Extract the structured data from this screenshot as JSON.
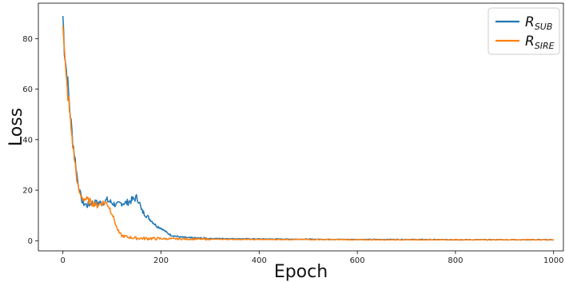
{
  "chart_data": {
    "type": "line",
    "xlabel": "Epoch",
    "ylabel": "Loss",
    "xlim": [
      -50,
      1020
    ],
    "ylim": [
      -4,
      94
    ],
    "x_ticks": [
      0,
      200,
      400,
      600,
      800,
      1000
    ],
    "y_ticks": [
      0,
      20,
      40,
      60,
      80
    ],
    "grid": false,
    "legend_position": "top-right",
    "series": [
      {
        "name": "R_SUB",
        "legend_main": "R",
        "legend_sub": "SUB",
        "color": "#1f77b4",
        "x": [
          0,
          3,
          6,
          10,
          15,
          20,
          25,
          30,
          35,
          40,
          50,
          60,
          70,
          80,
          90,
          100,
          110,
          120,
          130,
          140,
          150,
          155,
          160,
          170,
          180,
          190,
          200,
          210,
          220,
          240,
          260,
          300,
          400,
          500,
          600,
          700,
          800,
          900,
          1000
        ],
        "y": [
          89,
          77,
          70,
          62,
          50,
          40,
          32,
          24,
          19,
          15,
          14,
          15,
          15,
          15,
          16,
          15,
          14,
          15,
          15,
          16,
          17,
          16,
          12,
          10,
          8,
          6,
          5,
          3.5,
          2.2,
          1.4,
          1.1,
          0.9,
          0.7,
          0.6,
          0.5,
          0.5,
          0.4,
          0.4,
          0.4
        ]
      },
      {
        "name": "R_SIRE",
        "legend_main": "R",
        "legend_sub": "SIRE",
        "color": "#ff7f0e",
        "x": [
          0,
          3,
          6,
          10,
          15,
          20,
          25,
          30,
          35,
          40,
          50,
          60,
          70,
          80,
          90,
          100,
          105,
          110,
          115,
          120,
          130,
          150,
          200,
          300,
          400,
          500,
          600,
          700,
          800,
          900,
          1000
        ],
        "y": [
          89,
          75,
          65,
          58,
          48,
          38,
          30,
          22,
          18,
          17,
          16,
          15,
          14,
          15,
          15,
          11,
          8,
          5,
          3,
          2,
          1.5,
          1.0,
          0.8,
          0.6,
          0.5,
          0.5,
          0.4,
          0.4,
          0.4,
          0.4,
          0.4
        ]
      }
    ]
  }
}
